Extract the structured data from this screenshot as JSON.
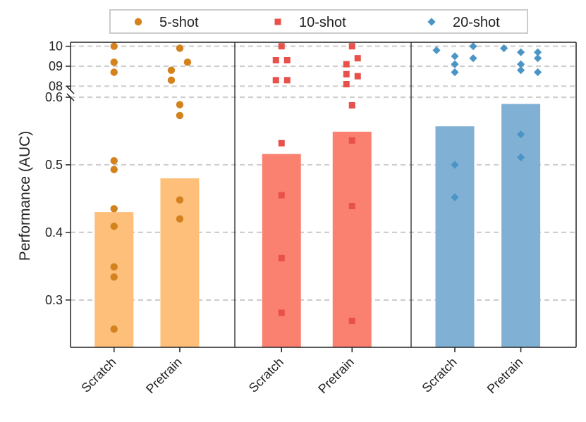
{
  "chart_data": {
    "type": "bar",
    "ylabel": "Performance (AUC)",
    "ylim": [
      0.23,
      0.6
    ],
    "break_ylim": [
      0.78,
      1.02
    ],
    "yticks": [
      0.3,
      0.4,
      0.5,
      0.6
    ],
    "yticks_break": [
      0.8,
      0.9,
      1.0
    ],
    "ytick_labels": [
      "0.3",
      "0.4",
      "0.5",
      "0.6"
    ],
    "ytick_labels_break": [
      "08",
      "09",
      "10"
    ],
    "grid": true,
    "legend": {
      "placement": "top-center",
      "entries": [
        {
          "label": "5-shot",
          "marker": "circle",
          "color": "#d4821e"
        },
        {
          "label": "10-shot",
          "marker": "square",
          "color": "#e8504a"
        },
        {
          "label": "20-shot",
          "marker": "diamond",
          "color": "#4a95c6"
        }
      ]
    },
    "categories": [
      "Scratch",
      "Pretrain"
    ],
    "series": [
      {
        "name": "5-shot",
        "bar_color": "#fdbf7a",
        "marker_color": "#d4821e",
        "bars": [
          0.43,
          0.48
        ],
        "points": [
          [
            1.0,
            0.92,
            0.87,
            0.506,
            0.493,
            0.435,
            0.409,
            0.349,
            0.334,
            0.257
          ],
          [
            0.99,
            0.92,
            0.88,
            0.83,
            0.589,
            0.573,
            0.448,
            0.42
          ]
        ]
      },
      {
        "name": "10-shot",
        "bar_color": "#fa8070",
        "marker_color": "#e8504a",
        "bars": [
          0.516,
          0.549
        ],
        "points": [
          [
            1.0,
            0.93,
            0.93,
            0.83,
            0.83,
            0.532,
            0.455,
            0.362,
            0.281
          ],
          [
            1.0,
            0.94,
            0.91,
            0.86,
            0.85,
            0.81,
            0.588,
            0.536,
            0.439,
            0.269
          ]
        ]
      },
      {
        "name": "20-shot",
        "bar_color": "#80b0d4",
        "marker_color": "#4a95c6",
        "bars": [
          0.557,
          0.59
        ],
        "points": [
          [
            1.0,
            0.98,
            0.95,
            0.94,
            0.91,
            0.87,
            0.5,
            0.452
          ],
          [
            0.99,
            0.97,
            0.97,
            0.94,
            0.91,
            0.88,
            0.87,
            0.545,
            0.511
          ]
        ]
      }
    ]
  }
}
